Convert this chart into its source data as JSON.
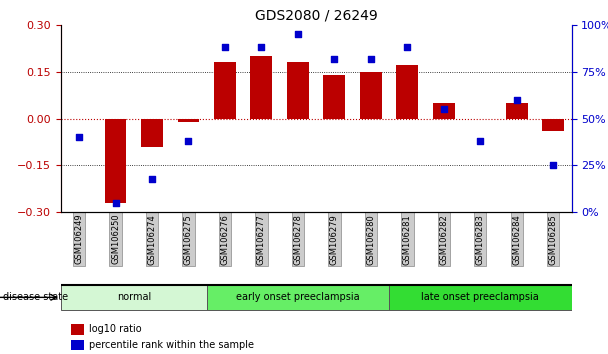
{
  "title": "GDS2080 / 26249",
  "samples": [
    "GSM106249",
    "GSM106250",
    "GSM106274",
    "GSM106275",
    "GSM106276",
    "GSM106277",
    "GSM106278",
    "GSM106279",
    "GSM106280",
    "GSM106281",
    "GSM106282",
    "GSM106283",
    "GSM106284",
    "GSM106285"
  ],
  "log10_ratio": [
    0.0,
    -0.27,
    -0.09,
    -0.01,
    0.18,
    0.2,
    0.18,
    0.14,
    0.15,
    0.17,
    0.05,
    0.0,
    0.05,
    -0.04
  ],
  "percentile_rank": [
    40,
    5,
    18,
    38,
    88,
    88,
    95,
    82,
    82,
    88,
    55,
    38,
    60,
    25
  ],
  "groups": [
    {
      "label": "normal",
      "start": 0,
      "end": 4,
      "color": "#d4f7d4"
    },
    {
      "label": "early onset preeclampsia",
      "start": 4,
      "end": 9,
      "color": "#66ee66"
    },
    {
      "label": "late onset preeclampsia",
      "start": 9,
      "end": 14,
      "color": "#33dd33"
    }
  ],
  "bar_color": "#bb0000",
  "dot_color": "#0000cc",
  "ylim_left": [
    -0.3,
    0.3
  ],
  "ylim_right": [
    0,
    100
  ],
  "yticks_left": [
    -0.3,
    -0.15,
    0,
    0.15,
    0.3
  ],
  "yticks_right": [
    0,
    25,
    50,
    75,
    100
  ],
  "disease_state_label": "disease state",
  "legend_bar_label": "log10 ratio",
  "legend_dot_label": "percentile rank within the sample",
  "bar_width": 0.6
}
